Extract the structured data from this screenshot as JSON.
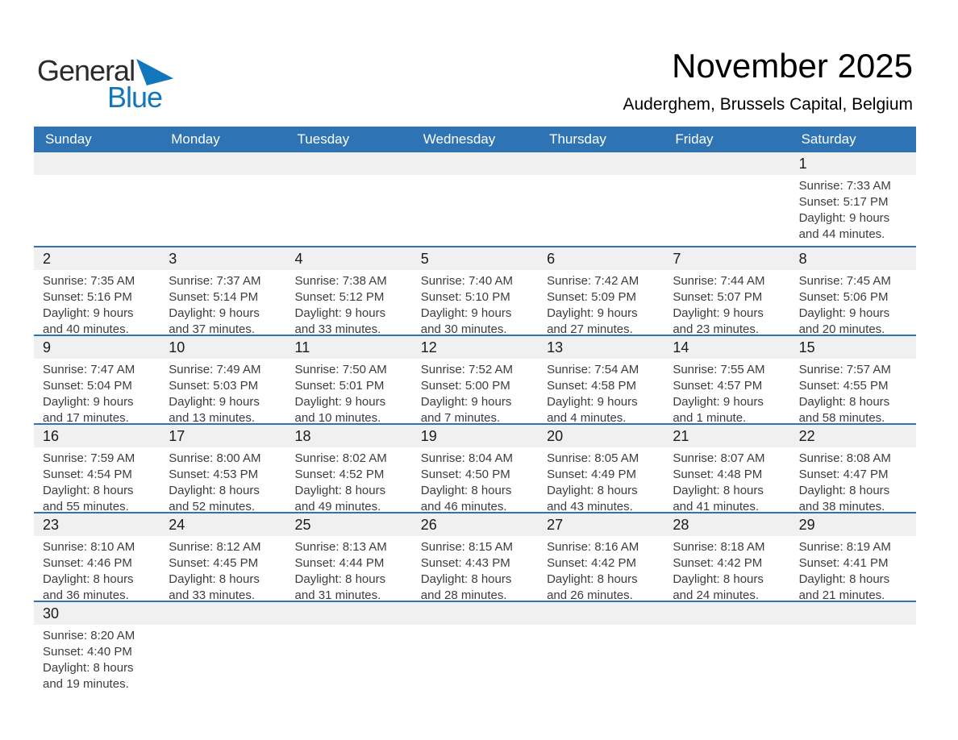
{
  "logo": {
    "general": "General",
    "blue": "Blue"
  },
  "header": {
    "title": "November 2025",
    "subtitle": "Auderghem, Brussels Capital, Belgium"
  },
  "weekdays": [
    "Sunday",
    "Monday",
    "Tuesday",
    "Wednesday",
    "Thursday",
    "Friday",
    "Saturday"
  ],
  "colors": {
    "header_bg": "#2e74b5",
    "row_separator": "#2e74b5",
    "day_number_strip_bg": "#f0f0f0",
    "header_text": "#ffffff",
    "cell_text": "#3d3d3d",
    "day_number_text": "#1a1a1a",
    "logo_blue": "#1276bd",
    "logo_black": "#2b2b2b"
  },
  "weeks": [
    [
      null,
      null,
      null,
      null,
      null,
      null,
      {
        "day": "1",
        "sunrise": "Sunrise: 7:33 AM",
        "sunset": "Sunset: 5:17 PM",
        "daylight1": "Daylight: 9 hours",
        "daylight2": "and 44 minutes."
      }
    ],
    [
      {
        "day": "2",
        "sunrise": "Sunrise: 7:35 AM",
        "sunset": "Sunset: 5:16 PM",
        "daylight1": "Daylight: 9 hours",
        "daylight2": "and 40 minutes."
      },
      {
        "day": "3",
        "sunrise": "Sunrise: 7:37 AM",
        "sunset": "Sunset: 5:14 PM",
        "daylight1": "Daylight: 9 hours",
        "daylight2": "and 37 minutes."
      },
      {
        "day": "4",
        "sunrise": "Sunrise: 7:38 AM",
        "sunset": "Sunset: 5:12 PM",
        "daylight1": "Daylight: 9 hours",
        "daylight2": "and 33 minutes."
      },
      {
        "day": "5",
        "sunrise": "Sunrise: 7:40 AM",
        "sunset": "Sunset: 5:10 PM",
        "daylight1": "Daylight: 9 hours",
        "daylight2": "and 30 minutes."
      },
      {
        "day": "6",
        "sunrise": "Sunrise: 7:42 AM",
        "sunset": "Sunset: 5:09 PM",
        "daylight1": "Daylight: 9 hours",
        "daylight2": "and 27 minutes."
      },
      {
        "day": "7",
        "sunrise": "Sunrise: 7:44 AM",
        "sunset": "Sunset: 5:07 PM",
        "daylight1": "Daylight: 9 hours",
        "daylight2": "and 23 minutes."
      },
      {
        "day": "8",
        "sunrise": "Sunrise: 7:45 AM",
        "sunset": "Sunset: 5:06 PM",
        "daylight1": "Daylight: 9 hours",
        "daylight2": "and 20 minutes."
      }
    ],
    [
      {
        "day": "9",
        "sunrise": "Sunrise: 7:47 AM",
        "sunset": "Sunset: 5:04 PM",
        "daylight1": "Daylight: 9 hours",
        "daylight2": "and 17 minutes."
      },
      {
        "day": "10",
        "sunrise": "Sunrise: 7:49 AM",
        "sunset": "Sunset: 5:03 PM",
        "daylight1": "Daylight: 9 hours",
        "daylight2": "and 13 minutes."
      },
      {
        "day": "11",
        "sunrise": "Sunrise: 7:50 AM",
        "sunset": "Sunset: 5:01 PM",
        "daylight1": "Daylight: 9 hours",
        "daylight2": "and 10 minutes."
      },
      {
        "day": "12",
        "sunrise": "Sunrise: 7:52 AM",
        "sunset": "Sunset: 5:00 PM",
        "daylight1": "Daylight: 9 hours",
        "daylight2": "and 7 minutes."
      },
      {
        "day": "13",
        "sunrise": "Sunrise: 7:54 AM",
        "sunset": "Sunset: 4:58 PM",
        "daylight1": "Daylight: 9 hours",
        "daylight2": "and 4 minutes."
      },
      {
        "day": "14",
        "sunrise": "Sunrise: 7:55 AM",
        "sunset": "Sunset: 4:57 PM",
        "daylight1": "Daylight: 9 hours",
        "daylight2": "and 1 minute."
      },
      {
        "day": "15",
        "sunrise": "Sunrise: 7:57 AM",
        "sunset": "Sunset: 4:55 PM",
        "daylight1": "Daylight: 8 hours",
        "daylight2": "and 58 minutes."
      }
    ],
    [
      {
        "day": "16",
        "sunrise": "Sunrise: 7:59 AM",
        "sunset": "Sunset: 4:54 PM",
        "daylight1": "Daylight: 8 hours",
        "daylight2": "and 55 minutes."
      },
      {
        "day": "17",
        "sunrise": "Sunrise: 8:00 AM",
        "sunset": "Sunset: 4:53 PM",
        "daylight1": "Daylight: 8 hours",
        "daylight2": "and 52 minutes."
      },
      {
        "day": "18",
        "sunrise": "Sunrise: 8:02 AM",
        "sunset": "Sunset: 4:52 PM",
        "daylight1": "Daylight: 8 hours",
        "daylight2": "and 49 minutes."
      },
      {
        "day": "19",
        "sunrise": "Sunrise: 8:04 AM",
        "sunset": "Sunset: 4:50 PM",
        "daylight1": "Daylight: 8 hours",
        "daylight2": "and 46 minutes."
      },
      {
        "day": "20",
        "sunrise": "Sunrise: 8:05 AM",
        "sunset": "Sunset: 4:49 PM",
        "daylight1": "Daylight: 8 hours",
        "daylight2": "and 43 minutes."
      },
      {
        "day": "21",
        "sunrise": "Sunrise: 8:07 AM",
        "sunset": "Sunset: 4:48 PM",
        "daylight1": "Daylight: 8 hours",
        "daylight2": "and 41 minutes."
      },
      {
        "day": "22",
        "sunrise": "Sunrise: 8:08 AM",
        "sunset": "Sunset: 4:47 PM",
        "daylight1": "Daylight: 8 hours",
        "daylight2": "and 38 minutes."
      }
    ],
    [
      {
        "day": "23",
        "sunrise": "Sunrise: 8:10 AM",
        "sunset": "Sunset: 4:46 PM",
        "daylight1": "Daylight: 8 hours",
        "daylight2": "and 36 minutes."
      },
      {
        "day": "24",
        "sunrise": "Sunrise: 8:12 AM",
        "sunset": "Sunset: 4:45 PM",
        "daylight1": "Daylight: 8 hours",
        "daylight2": "and 33 minutes."
      },
      {
        "day": "25",
        "sunrise": "Sunrise: 8:13 AM",
        "sunset": "Sunset: 4:44 PM",
        "daylight1": "Daylight: 8 hours",
        "daylight2": "and 31 minutes."
      },
      {
        "day": "26",
        "sunrise": "Sunrise: 8:15 AM",
        "sunset": "Sunset: 4:43 PM",
        "daylight1": "Daylight: 8 hours",
        "daylight2": "and 28 minutes."
      },
      {
        "day": "27",
        "sunrise": "Sunrise: 8:16 AM",
        "sunset": "Sunset: 4:42 PM",
        "daylight1": "Daylight: 8 hours",
        "daylight2": "and 26 minutes."
      },
      {
        "day": "28",
        "sunrise": "Sunrise: 8:18 AM",
        "sunset": "Sunset: 4:42 PM",
        "daylight1": "Daylight: 8 hours",
        "daylight2": "and 24 minutes."
      },
      {
        "day": "29",
        "sunrise": "Sunrise: 8:19 AM",
        "sunset": "Sunset: 4:41 PM",
        "daylight1": "Daylight: 8 hours",
        "daylight2": "and 21 minutes."
      }
    ],
    [
      {
        "day": "30",
        "sunrise": "Sunrise: 8:20 AM",
        "sunset": "Sunset: 4:40 PM",
        "daylight1": "Daylight: 8 hours",
        "daylight2": "and 19 minutes."
      },
      null,
      null,
      null,
      null,
      null,
      null
    ]
  ]
}
